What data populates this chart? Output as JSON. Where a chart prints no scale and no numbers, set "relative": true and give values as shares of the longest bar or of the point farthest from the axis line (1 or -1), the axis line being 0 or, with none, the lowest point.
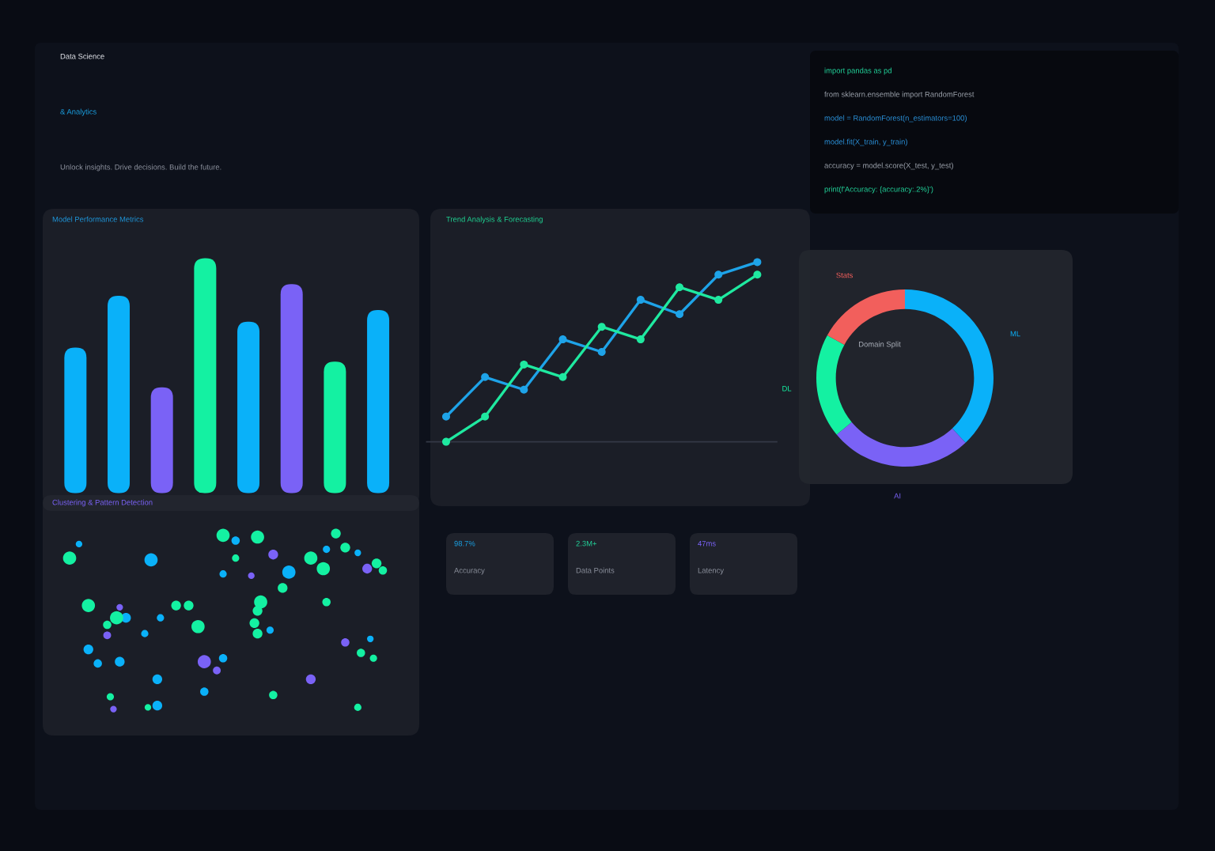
{
  "chart_data": [
    {
      "type": "other",
      "annotations": [
        "Data Science",
        "& Analytics",
        "Unlock insights. Drive decisions. Build the future."
      ],
      "colors": [
        "#e6e8ee",
        "#1a9fe0",
        "#8b909c"
      ]
    },
    {
      "type": "other",
      "annotations": [
        "import pandas as pd",
        "from sklearn.ensemble import RandomForest",
        "model = RandomForest(n_estimators=100)",
        "model.fit(X_train, y_train)",
        "accuracy = model.score(X_test, y_test)",
        "print(f'Accuracy: {accuracy:.2%}')"
      ],
      "colors": [
        "#22d39a",
        "#9aa0aa",
        "#2a8fd6",
        "#2a8fd6",
        "#9aa0aa",
        "#22d39a"
      ]
    },
    {
      "type": "bar",
      "title": "Model Performance Metrics",
      "relative": true,
      "categories": [
        null,
        null,
        null,
        null,
        null,
        null,
        null,
        null
      ],
      "values": [
        0.62,
        0.84,
        0.45,
        1,
        0.73,
        0.89,
        0.56,
        0.78
      ],
      "colors": [
        "#0ab1f9",
        "#0ab1f9",
        "#7a62f6",
        "#14f1a2",
        "#0ab1f9",
        "#7a62f6",
        "#14f1a2",
        "#0ab1f9"
      ]
    },
    {
      "type": "line",
      "title": "Trend Analysis & Forecasting",
      "relative": true,
      "marker": "circle",
      "categories": [
        null,
        null,
        null,
        null,
        null,
        null,
        null,
        null,
        null
      ],
      "series": [
        {
          "color": "#1ea3e8",
          "values": [
            0.14,
            0.36,
            0.29,
            0.57,
            0.5,
            0.79,
            0.71,
            0.93,
            1
          ]
        },
        {
          "color": "#1fe9a0",
          "values": [
            0,
            0.14,
            0.43,
            0.36,
            0.64,
            0.57,
            0.86,
            0.79,
            0.93
          ]
        }
      ]
    },
    {
      "type": "donut",
      "title": "Domain Split",
      "categories": [
        "ML",
        "AI",
        "DL",
        "Stats"
      ],
      "values": [
        38,
        26,
        19,
        17
      ],
      "colors": [
        "#0ab1f9",
        "#7a62f6",
        "#14f1a2",
        "#f25f5c"
      ]
    },
    {
      "type": "other",
      "title": "Clustering & Pattern Detection"
    },
    {
      "type": "other",
      "annotations": [
        "98.7%",
        "Accuracy",
        "2.3M+",
        "Data Points",
        "47ms",
        "Latency"
      ],
      "colors": [
        "#1a9fe0",
        "#8b909c",
        "#22d39a",
        "#8b909c",
        "#7a62f6",
        "#8b909c"
      ]
    }
  ]
}
